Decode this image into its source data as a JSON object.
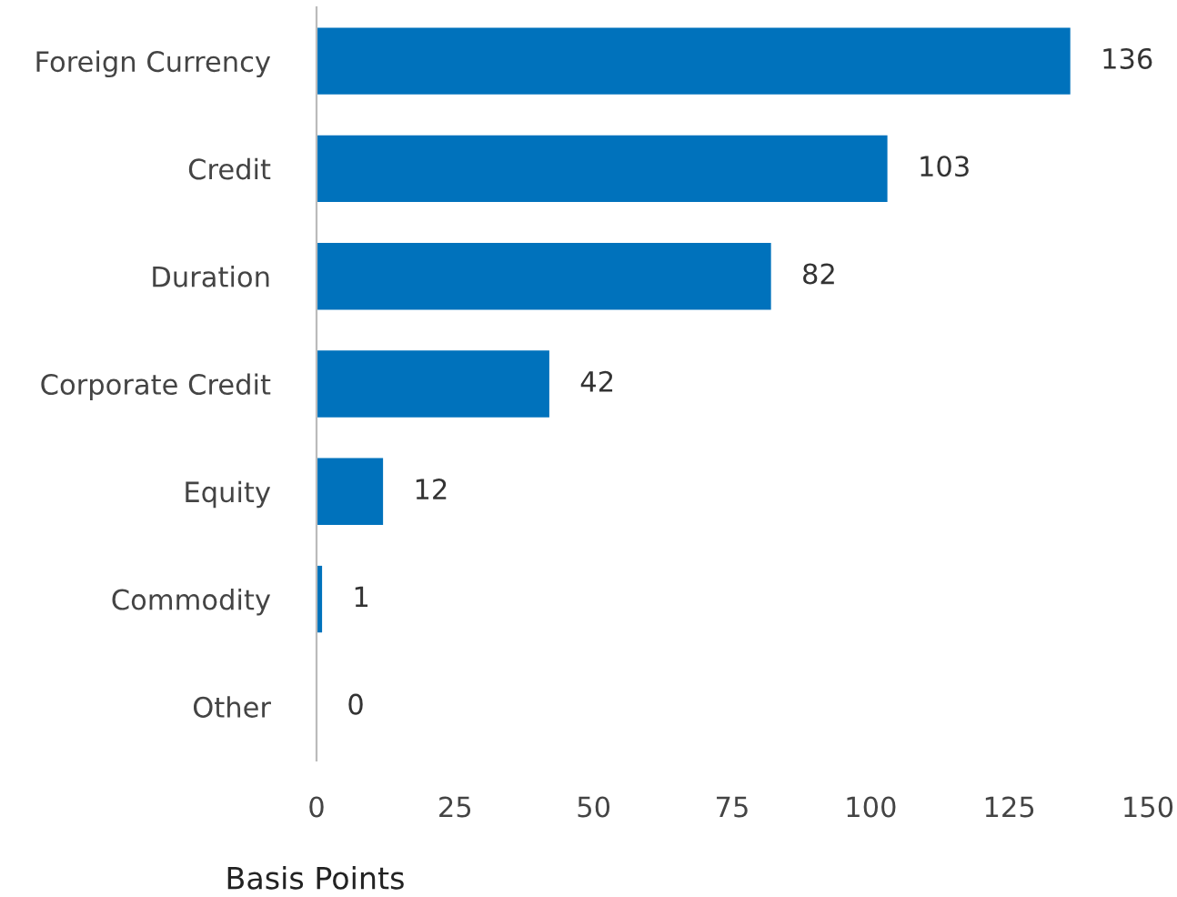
{
  "chart_data": {
    "type": "bar",
    "orientation": "horizontal",
    "xlabel": "Basis Points",
    "categories": [
      "Foreign Currency",
      "Credit",
      "Duration",
      "Corporate Credit",
      "Equity",
      "Commodity",
      "Other"
    ],
    "values": [
      136,
      103,
      82,
      42,
      12,
      1,
      0
    ],
    "color": "#0072bc",
    "xlim": [
      0,
      150
    ],
    "xticks": [
      0,
      25,
      50,
      75,
      100,
      125,
      150
    ],
    "grid": false,
    "data_labels": true
  }
}
